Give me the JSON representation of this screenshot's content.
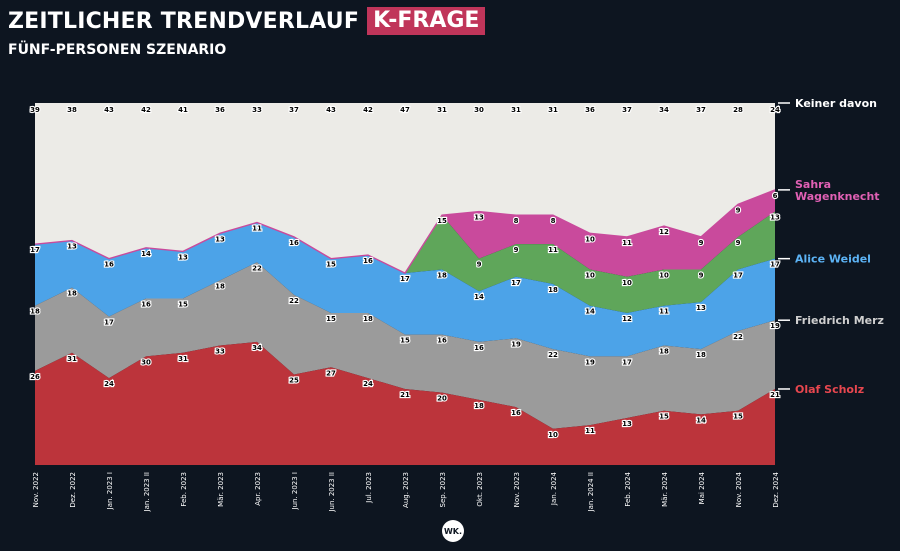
{
  "header": {
    "title": "ZEITLICHER TRENDVERLAUF",
    "badge": "K-FRAGE",
    "subtitle": "FÜNF-PERSONEN SZENARIO"
  },
  "logo": {
    "text": "WK."
  },
  "chart_data": {
    "type": "area",
    "stacked": true,
    "ylim": [
      0,
      100
    ],
    "grid": false,
    "categories": [
      "Nov. 2022",
      "Dez. 2022",
      "Jan. 2023 I",
      "Jan. 2023 II",
      "Feb. 2023",
      "Mär. 2023",
      "Apr. 2023",
      "Jun. 2023 I",
      "Jun. 2023 II",
      "Jul. 2023",
      "Aug. 2023",
      "Sep. 2023",
      "Okt. 2023",
      "Nov. 2023",
      "Jan. 2024",
      "Jan. 2024 II",
      "Feb. 2024",
      "Mär. 2024",
      "Mai 2024",
      "Nov. 2024",
      "Dez. 2024"
    ],
    "series": [
      {
        "name": "Olaf Scholz",
        "color": "#bc343b",
        "labelColor": "#e8474f",
        "values": [
          26,
          31,
          24,
          30,
          31,
          33,
          34,
          25,
          27,
          24,
          21,
          20,
          18,
          16,
          10,
          11,
          13,
          15,
          14,
          15,
          21
        ]
      },
      {
        "name": "Friedrich Merz",
        "color": "#9b9b9b",
        "labelColor": "#cfcfcf",
        "values": [
          18,
          18,
          17,
          16,
          15,
          18,
          22,
          22,
          15,
          18,
          15,
          16,
          16,
          19,
          22,
          19,
          17,
          18,
          18,
          22,
          19
        ]
      },
      {
        "name": "Alice Weidel",
        "color": "#4ca3e8",
        "labelColor": "#5cb3f5",
        "values": [
          17,
          13,
          16,
          14,
          13,
          13,
          11,
          16,
          15,
          16,
          17,
          18,
          14,
          17,
          18,
          14,
          12,
          11,
          13,
          17,
          17
        ]
      },
      {
        "name": "Sahra Wagenknecht",
        "display": [
          "Sahra",
          "Wagenknecht"
        ],
        "color": "#c94a9c",
        "labelColor": "#e060b4",
        "subBands": [
          {
            "color": "#5fa65a",
            "values": [
              null,
              null,
              null,
              null,
              null,
              null,
              null,
              null,
              null,
              null,
              null,
              15,
              9,
              9,
              11,
              10,
              10,
              10,
              9,
              9,
              13
            ]
          },
          {
            "color": "#c94a9c",
            "values": [
              null,
              null,
              null,
              null,
              null,
              null,
              null,
              null,
              null,
              null,
              null,
              null,
              13,
              8,
              8,
              10,
              11,
              12,
              9,
              9,
              6
            ]
          }
        ]
      },
      {
        "name": "Keiner davon",
        "color": "#ecebe7",
        "labelColor": "#ffffff",
        "values": [
          39,
          38,
          43,
          42,
          41,
          36,
          33,
          37,
          43,
          42,
          47,
          31,
          30,
          31,
          31,
          36,
          37,
          34,
          37,
          28,
          24
        ]
      }
    ]
  }
}
